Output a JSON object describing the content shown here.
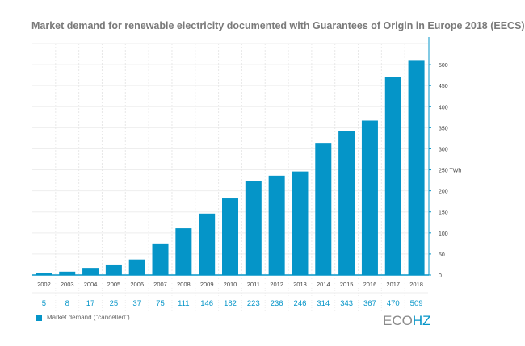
{
  "chart_data": {
    "type": "bar",
    "title": "Market demand for renewable electricity documented with Guarantees of Origin in Europe 2018 (EECS)",
    "categories": [
      "2002",
      "2003",
      "2004",
      "2005",
      "2006",
      "2007",
      "2008",
      "2009",
      "2010",
      "2011",
      "2012",
      "2013",
      "2014",
      "2015",
      "2016",
      "2017",
      "2018"
    ],
    "series": [
      {
        "name": "Market demand (\"cancelled\")",
        "values": [
          5,
          8,
          17,
          25,
          37,
          75,
          111,
          146,
          182,
          223,
          236,
          246,
          314,
          343,
          367,
          470,
          509
        ],
        "color": "#0595c8"
      }
    ],
    "ylabel": "",
    "yunit": "TWh",
    "ylim": [
      0,
      550
    ],
    "yticks": [
      0,
      50,
      100,
      150,
      200,
      250,
      300,
      350,
      400,
      450,
      500
    ],
    "yaxis_position": "right",
    "grid": true,
    "legend": "bottom-left"
  },
  "logo": {
    "part1": "ECO",
    "part2": "HZ"
  }
}
